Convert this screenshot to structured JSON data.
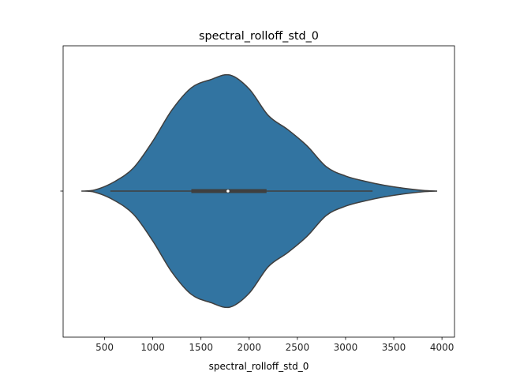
{
  "chart_data": {
    "type": "violin",
    "title": "spectral_rolloff_std_0",
    "xlabel": "spectral_rolloff_std_0",
    "ylabel": "",
    "xlim": [
      70,
      4130
    ],
    "xticks": [
      500,
      1000,
      1500,
      2000,
      2500,
      3000,
      3500,
      4000
    ],
    "xtick_labels": [
      "500",
      "1000",
      "1500",
      "2000",
      "2500",
      "3000",
      "3500",
      "4000"
    ],
    "grid": false,
    "fill_color": "#3274a1",
    "edge_color": "#3f3f3f",
    "density_profile": [
      {
        "x": 260,
        "half_width": 0.0
      },
      {
        "x": 400,
        "half_width": 0.01
      },
      {
        "x": 600,
        "half_width": 0.08
      },
      {
        "x": 800,
        "half_width": 0.2
      },
      {
        "x": 1000,
        "half_width": 0.43
      },
      {
        "x": 1200,
        "half_width": 0.7
      },
      {
        "x": 1400,
        "half_width": 0.89
      },
      {
        "x": 1600,
        "half_width": 0.96
      },
      {
        "x": 1800,
        "half_width": 1.0
      },
      {
        "x": 2000,
        "half_width": 0.88
      },
      {
        "x": 2200,
        "half_width": 0.65
      },
      {
        "x": 2400,
        "half_width": 0.53
      },
      {
        "x": 2600,
        "half_width": 0.39
      },
      {
        "x": 2800,
        "half_width": 0.21
      },
      {
        "x": 3000,
        "half_width": 0.13
      },
      {
        "x": 3200,
        "half_width": 0.085
      },
      {
        "x": 3400,
        "half_width": 0.05
      },
      {
        "x": 3600,
        "half_width": 0.025
      },
      {
        "x": 3800,
        "half_width": 0.006
      },
      {
        "x": 3950,
        "half_width": 0.0
      }
    ],
    "box": {
      "whisker_low": 560,
      "q1": 1400,
      "median": 1780,
      "q3": 2180,
      "whisker_high": 3280
    }
  }
}
